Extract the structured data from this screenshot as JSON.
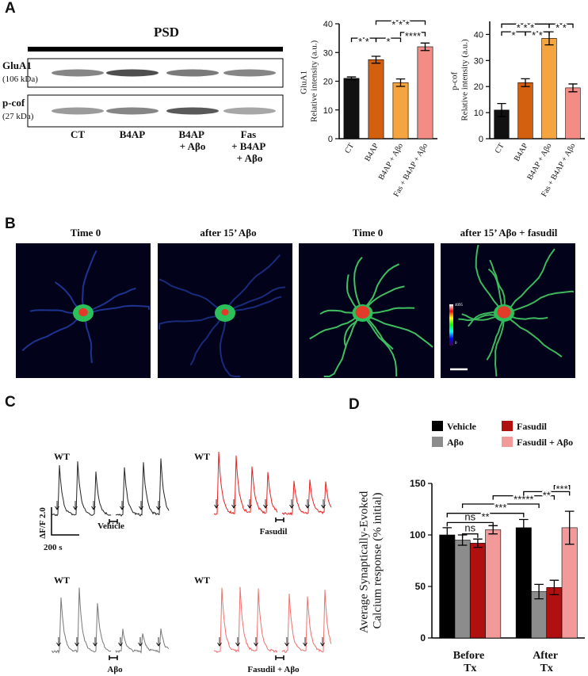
{
  "panel_labels": [
    "A",
    "B",
    "C",
    "D"
  ],
  "blot": {
    "title": "PSD",
    "rows": [
      {
        "name": "GluA1",
        "size": "(106 kDa)"
      },
      {
        "name": "p-cof",
        "size": "(27 kDa)"
      }
    ],
    "lanes": [
      "CT",
      "B4AP",
      "B4AP\n+ Aβo",
      "Fas\n+ B4AP\n+ Aβo"
    ]
  },
  "imaging": {
    "titles": [
      "Time 0",
      "after 15’ Aβo",
      "Time 0",
      "after 15’ Aβo + fasudil"
    ],
    "colorbar_labels": [
      "4095",
      "0"
    ]
  },
  "traces": {
    "genotype": [
      "WT",
      "WT",
      "WT",
      "WT"
    ],
    "conditions": [
      "Vehicle",
      "Fasudil",
      "Aβo",
      "Fasudil + Aβo"
    ],
    "scale_y": "ΔF/F 2.0",
    "scale_x": "200 s"
  },
  "chart_data": [
    {
      "type": "bar",
      "y_label": "GluA1\nRelative intensity (a.u.)",
      "categories": [
        "CT",
        "B4AP",
        "B4AP + Aβo",
        "Fas + B4AP + Aβo"
      ],
      "values": [
        21,
        27.5,
        19.5,
        32
      ],
      "errors": [
        0.5,
        1.2,
        1.3,
        1.3
      ],
      "colors": [
        "#111111",
        "#d2600f",
        "#f4a540",
        "#f28c84"
      ],
      "ylim": [
        0,
        40
      ],
      "yticks": [
        0,
        10,
        20,
        30,
        40
      ],
      "annotations": [
        {
          "from": 0,
          "to": 1,
          "y": 35,
          "label": "* *"
        },
        {
          "from": 1,
          "to": 2,
          "y": 35,
          "label": "*"
        },
        {
          "from": 1,
          "to": 3,
          "y": 41,
          "label": "* * *"
        },
        {
          "from": 2,
          "to": 3,
          "y": 37,
          "label": "****"
        }
      ]
    },
    {
      "type": "bar",
      "y_label": "p-cof\nRelative intensity (a.u.)",
      "categories": [
        "CT",
        "B4AP",
        "B4AP + Aβo",
        "Fas + B4AP + Aβo"
      ],
      "values": [
        11,
        21.5,
        38.5,
        19.5
      ],
      "errors": [
        2.5,
        1.5,
        2.5,
        1.5
      ],
      "colors": [
        "#111111",
        "#d2600f",
        "#f4a540",
        "#f28c84"
      ],
      "ylim": [
        0,
        45
      ],
      "yticks": [
        0,
        10,
        20,
        30,
        40
      ],
      "annotations": [
        {
          "from": 0,
          "to": 2,
          "y": 44,
          "label": "* * *"
        },
        {
          "from": 2,
          "to": 3,
          "y": 44,
          "label": "* *"
        },
        {
          "from": 0,
          "to": 1,
          "y": 41,
          "label": "*"
        },
        {
          "from": 1,
          "to": 2,
          "y": 41,
          "label": "* *"
        }
      ]
    },
    {
      "type": "grouped_bar",
      "y_label": "Average Synaptically-Evoked\nCalcium response (% initial)",
      "categories": [
        "Before\nTx",
        "After\nTx"
      ],
      "series": [
        {
          "name": "Vehicle",
          "color": "#000000",
          "values": [
            100,
            107
          ],
          "errors": [
            7,
            8
          ]
        },
        {
          "name": "Aβo",
          "color": "#8c8c8c",
          "values": [
            95,
            45
          ],
          "errors": [
            5,
            7
          ]
        },
        {
          "name": "Fasudil",
          "color": "#b01010",
          "values": [
            92,
            49
          ],
          "errors": [
            4,
            7
          ]
        },
        {
          "name": "Fasudil + Aβo",
          "color": "#f29a9a",
          "values": [
            105,
            107
          ],
          "errors": [
            4,
            16
          ]
        }
      ],
      "ylim": [
        0,
        150
      ],
      "yticks": [
        0,
        50,
        100,
        150
      ],
      "annotations": [
        {
          "from": [
            0,
            0
          ],
          "to": [
            0,
            3
          ],
          "y": 112,
          "label": "ns"
        },
        {
          "from": [
            0,
            1
          ],
          "to": [
            0,
            2
          ],
          "y": 101,
          "label": "ns"
        },
        {
          "from": [
            0,
            0
          ],
          "to": [
            1,
            0
          ],
          "y": 121,
          "label": "**"
        },
        {
          "from": [
            0,
            1
          ],
          "to": [
            1,
            1
          ],
          "y": 130,
          "label": "***"
        },
        {
          "from": [
            0,
            3
          ],
          "to": [
            1,
            2
          ],
          "y": 138,
          "label": "*****"
        },
        {
          "from": [
            1,
            0
          ],
          "to": [
            1,
            3
          ],
          "y": 142,
          "label": "**"
        },
        {
          "from": [
            1,
            2
          ],
          "to": [
            1,
            3
          ],
          "y": 148,
          "label": "***"
        }
      ]
    }
  ]
}
